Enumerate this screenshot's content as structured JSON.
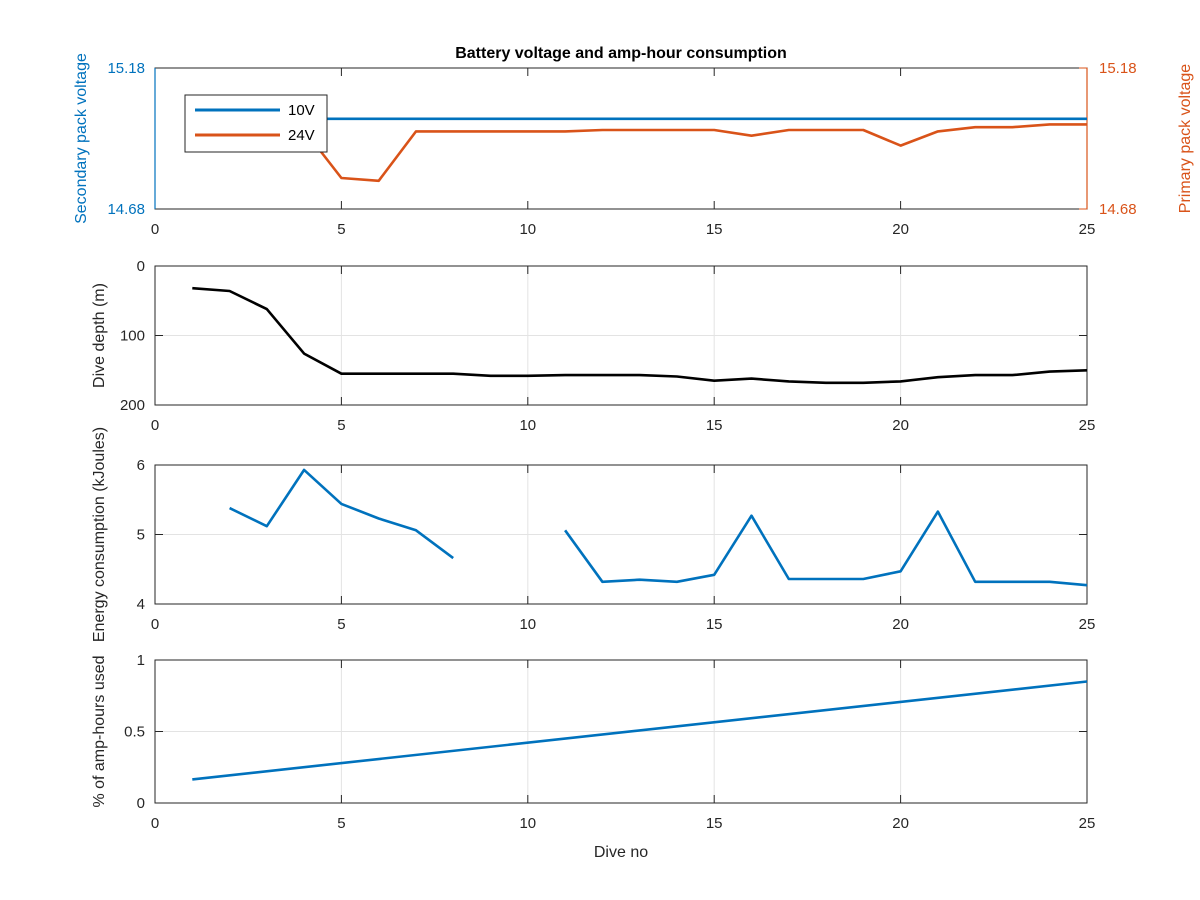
{
  "figure": {
    "title": "Battery voltage and amp-hour consumption",
    "xlabel": "Dive no"
  },
  "colors": {
    "blue": "#0072BD",
    "orange": "#D95319",
    "black": "#000000",
    "grid": "#e3e3e3",
    "axis": "#262626"
  },
  "chart_data": [
    {
      "type": "line",
      "title": "Battery voltage and amp-hour consumption",
      "xlabel": "",
      "ylabel_left": "Secondary pack voltage",
      "ylabel_right": "Primary pack voltage",
      "xlim": [
        0,
        25
      ],
      "xticks": [
        0,
        5,
        10,
        15,
        20,
        25
      ],
      "ylim_left": [
        14.68,
        15.18
      ],
      "yticks_left": [
        "14.68",
        "15.18"
      ],
      "ylim_right": [
        14.68,
        15.18
      ],
      "yticks_right": [
        "14.68",
        "15.18"
      ],
      "grid": false,
      "legend": {
        "placement": "top-left",
        "entries": [
          "10V",
          "24V"
        ]
      },
      "series": [
        {
          "name": "10V",
          "axis": "left",
          "color": "#0072BD",
          "x": [
            4,
            25
          ],
          "y": [
            15.0,
            15.0
          ]
        },
        {
          "name": "24V",
          "axis": "right",
          "color": "#D95319",
          "x": [
            4,
            5,
            6,
            7,
            8,
            9,
            10,
            11,
            12,
            13,
            14,
            15,
            16,
            17,
            18,
            19,
            20,
            21,
            22,
            23,
            24,
            25
          ],
          "y": [
            14.96,
            14.79,
            14.78,
            14.955,
            14.955,
            14.955,
            14.955,
            14.955,
            14.96,
            14.96,
            14.96,
            14.96,
            14.94,
            14.96,
            14.96,
            14.96,
            14.905,
            14.955,
            14.97,
            14.97,
            14.98,
            14.98
          ]
        }
      ]
    },
    {
      "type": "line",
      "xlabel": "",
      "ylabel": "Dive depth (m)",
      "xlim": [
        0,
        25
      ],
      "xticks": [
        0,
        5,
        10,
        15,
        20,
        25
      ],
      "ylim": [
        0,
        200
      ],
      "yticks": [
        0,
        100,
        200
      ],
      "y_reversed": true,
      "grid": true,
      "series": [
        {
          "color": "#000000",
          "x": [
            1,
            2,
            3,
            4,
            5,
            6,
            7,
            8,
            9,
            10,
            11,
            12,
            13,
            14,
            15,
            16,
            17,
            18,
            19,
            20,
            21,
            22,
            23,
            24,
            25
          ],
          "y": [
            32,
            36,
            62,
            126,
            155,
            155,
            155,
            155,
            158,
            158,
            157,
            157,
            157,
            159,
            165,
            162,
            166,
            168,
            168,
            166,
            160,
            157,
            157,
            152,
            150
          ]
        }
      ]
    },
    {
      "type": "line",
      "xlabel": "",
      "ylabel": "Energy consumption (kJoules)",
      "xlim": [
        0,
        25
      ],
      "xticks": [
        0,
        5,
        10,
        15,
        20,
        25
      ],
      "ylim": [
        4,
        6
      ],
      "yticks": [
        4,
        5,
        6
      ],
      "grid": true,
      "series": [
        {
          "color": "#0072BD",
          "x": [
            2,
            3,
            4,
            5,
            6,
            7,
            8,
            9,
            10,
            11,
            12,
            13,
            14,
            15,
            16,
            17,
            18,
            19,
            20,
            21,
            22,
            23,
            24,
            25
          ],
          "y": [
            5.38,
            5.12,
            5.93,
            5.44,
            5.23,
            5.06,
            4.66,
            null,
            null,
            5.06,
            4.32,
            4.35,
            4.32,
            4.42,
            5.27,
            4.36,
            4.36,
            4.36,
            4.47,
            5.33,
            4.32,
            4.32,
            4.32,
            4.27
          ]
        }
      ]
    },
    {
      "type": "line",
      "xlabel": "Dive no",
      "ylabel": "% of amp-hours used",
      "xlim": [
        0,
        25
      ],
      "xticks": [
        0,
        5,
        10,
        15,
        20,
        25
      ],
      "ylim": [
        0,
        1
      ],
      "yticks": [
        0,
        0.5,
        1
      ],
      "grid": true,
      "series": [
        {
          "color": "#0072BD",
          "x": [
            1,
            25
          ],
          "y": [
            0.165,
            0.85
          ]
        }
      ]
    }
  ]
}
